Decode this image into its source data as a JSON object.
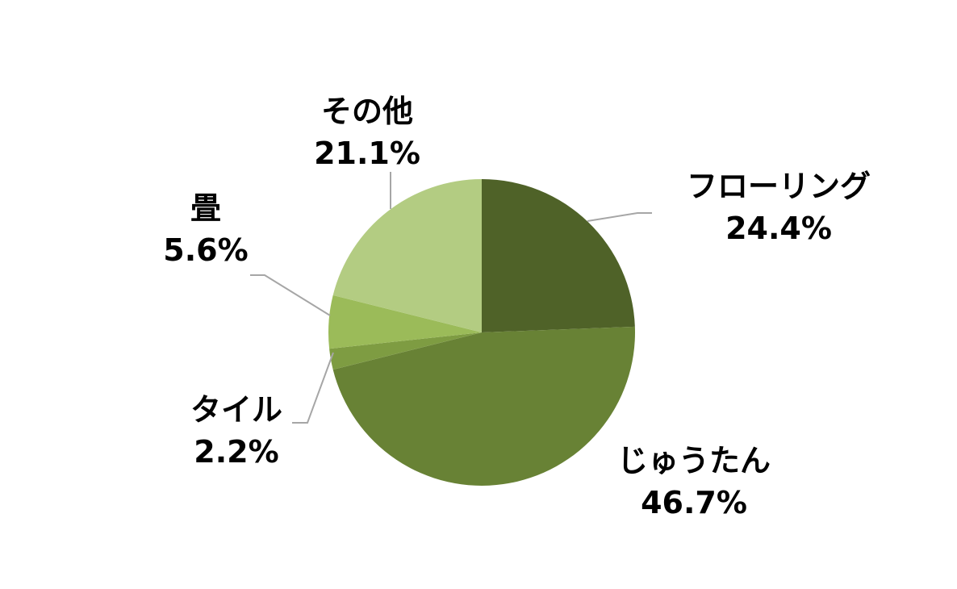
{
  "chart_data": {
    "type": "pie",
    "start_angle": "12 o'clock",
    "direction": "clockwise",
    "slices": [
      {
        "label": "フローリング",
        "value": 24.4,
        "value_label": "24.4%",
        "color": "#4f6228"
      },
      {
        "label": "じゅうたん",
        "value": 46.7,
        "value_label": "46.7%",
        "color": "#688235"
      },
      {
        "label": "タイル",
        "value": 2.2,
        "value_label": "2.2%",
        "color": "#7e9c42"
      },
      {
        "label": "畳",
        "value": 5.6,
        "value_label": "5.6%",
        "color": "#9bbb59"
      },
      {
        "label": "その他",
        "value": 21.1,
        "value_label": "21.1%",
        "color": "#b3cc82"
      }
    ],
    "leader_line_color": "#a6a6a6",
    "legend": "none"
  }
}
